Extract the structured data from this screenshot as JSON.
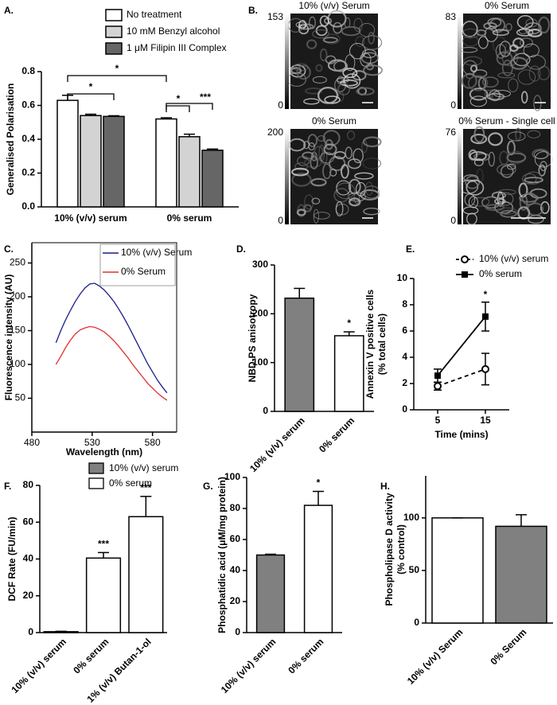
{
  "chart_data": [
    {
      "type": "bar",
      "label": "A.",
      "ylabel": "Generalised Polarisation",
      "categories": [
        "10% (v/v) serum",
        "0% serum"
      ],
      "series": [
        {
          "name": "No treatment",
          "color": "#ffffff",
          "values": [
            0.63,
            0.52
          ],
          "errors": [
            0.03,
            0.007
          ]
        },
        {
          "name": "10 mM Benzyl alcohol",
          "color": "#d3d3d3",
          "values": [
            0.54,
            0.415
          ],
          "errors": [
            0.008,
            0.015
          ]
        },
        {
          "name": "1 μM Filipin III Complex",
          "color": "#666666",
          "values": [
            0.535,
            0.335
          ],
          "errors": [
            0.004,
            0.007
          ]
        }
      ],
      "ylim": [
        0,
        0.8
      ],
      "yticks": [
        {
          "value": 0,
          "label": "0.0"
        },
        0.2,
        0.4,
        0.6,
        0.8
      ],
      "annotations": [
        "*",
        "*",
        "*",
        "***"
      ]
    },
    {
      "type": "image",
      "label": "B.",
      "panels": [
        {
          "title": "10% (v/v) Serum",
          "scale": [
            0,
            153
          ]
        },
        {
          "title": "0% Serum",
          "scale": [
            0,
            83
          ]
        },
        {
          "title": "0% Serum",
          "scale": [
            0,
            200
          ]
        },
        {
          "title": "0% Serum - Single cell",
          "scale": [
            0,
            76
          ]
        }
      ]
    },
    {
      "type": "line",
      "label": "C.",
      "xlabel": "Wavelength (nm)",
      "ylabel": "Fluorescence intensity (AU)",
      "x": [
        500,
        504,
        508,
        512,
        516,
        520,
        524,
        528,
        532,
        536,
        540,
        544,
        548,
        552,
        556,
        560,
        564,
        568,
        572,
        576,
        580,
        584,
        588,
        592
      ],
      "series": [
        {
          "name": "10% (v/v) Serum",
          "color": "#1c1c8a",
          "values": [
            132,
            150,
            166,
            180,
            193,
            204,
            213,
            219,
            220,
            216,
            210,
            202,
            193,
            182,
            170,
            157,
            143,
            129,
            115,
            101,
            89,
            77,
            67,
            58
          ]
        },
        {
          "name": "0% Serum",
          "color": "#e03030",
          "values": [
            100,
            112,
            125,
            136,
            145,
            151,
            154,
            156,
            155,
            152,
            148,
            142,
            135,
            127,
            118,
            109,
            99,
            90,
            81,
            72,
            65,
            58,
            52,
            47
          ]
        }
      ],
      "xlim": [
        480,
        600
      ],
      "xticks": [
        480,
        530,
        580
      ],
      "ylim": [
        0,
        280
      ],
      "yticks": [
        50,
        100,
        150,
        200,
        250
      ]
    },
    {
      "type": "bar",
      "label": "D.",
      "ylabel": "NBD-PS anisotropy",
      "categories": [
        "10% (v/v) serum",
        "0% serum"
      ],
      "values": [
        232,
        155
      ],
      "errors": [
        20,
        8
      ],
      "colors": [
        "#808080",
        "#ffffff"
      ],
      "ylim": [
        0,
        300
      ],
      "yticks": [
        0,
        100,
        200,
        300
      ],
      "annotations": [
        null,
        "*"
      ]
    },
    {
      "type": "line",
      "label": "E.",
      "xlabel": "Time (mins)",
      "ylabel": [
        "Annexin V positive cells",
        "(% total cells)"
      ],
      "x": [
        5,
        15
      ],
      "series": [
        {
          "name": "10% (v/v) serum",
          "color": "#000000",
          "marker": "circle",
          "dashed": true,
          "values": [
            1.8,
            3.1
          ],
          "errors": [
            0.3,
            1.2
          ]
        },
        {
          "name": "0% serum",
          "color": "#000000",
          "marker": "square",
          "dashed": false,
          "values": [
            2.6,
            7.1
          ],
          "errors": [
            0.5,
            1.1
          ]
        }
      ],
      "xlim": [
        0,
        20
      ],
      "xticks": [
        5,
        15
      ],
      "ylim": [
        0,
        10
      ],
      "yticks": [
        0,
        2,
        4,
        6,
        8,
        10
      ],
      "annotations": [
        null,
        "*"
      ]
    },
    {
      "type": "bar",
      "label": "F.",
      "ylabel": "DCF Rate (FU/min)",
      "categories": [
        "10% (v/v) serum",
        "0% serum",
        "1% (v/v) Butan-1-ol"
      ],
      "values": [
        0.5,
        40.5,
        63
      ],
      "errors": [
        0.2,
        3,
        11
      ],
      "colors": [
        "#808080",
        "#ffffff",
        "#ffffff"
      ],
      "legend": [
        {
          "name": "10% (v/v) serum",
          "color": "#808080"
        },
        {
          "name": "0% serum",
          "color": "#ffffff"
        }
      ],
      "ylim": [
        0,
        80
      ],
      "yticks": [
        0,
        20,
        40,
        60,
        80
      ],
      "annotations": [
        null,
        "***",
        "***"
      ]
    },
    {
      "type": "bar",
      "label": "G.",
      "ylabel": "Phosphatidic acid (μM/mg protein)",
      "categories": [
        "10% (v/v) serum",
        "0% serum"
      ],
      "values": [
        50,
        82
      ],
      "errors": [
        0.5,
        9
      ],
      "colors": [
        "#808080",
        "#ffffff"
      ],
      "ylim": [
        0,
        100
      ],
      "yticks": [
        0,
        20,
        40,
        60,
        80,
        100
      ],
      "annotations": [
        null,
        "*"
      ]
    },
    {
      "type": "bar",
      "label": "H.",
      "ylabel": [
        "Phospholipase D activity",
        "(% control)"
      ],
      "categories": [
        "10% (v/v) Serum",
        "0% Serum"
      ],
      "values": [
        100,
        92
      ],
      "errors": [
        0,
        11
      ],
      "colors": [
        "#ffffff",
        "#808080"
      ],
      "ylim": [
        0,
        140
      ],
      "yticks": [
        0,
        50,
        100
      ]
    }
  ]
}
